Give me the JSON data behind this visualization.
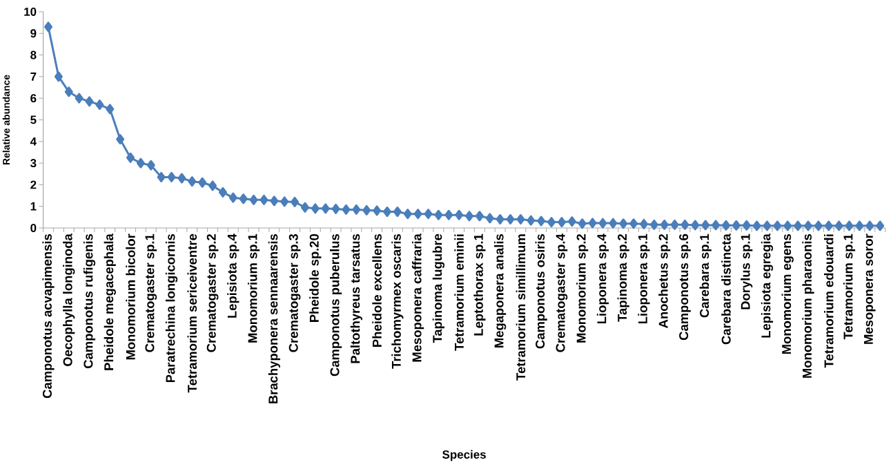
{
  "chart_data": {
    "type": "line",
    "xlabel": "Species",
    "ylabel": "Relative abundance",
    "categories": [
      "Camponotus acvapimensis",
      null,
      "Oecophylla longinoda",
      null,
      "Camponotus rufigenis",
      null,
      "Pheidole megacephala",
      null,
      "Monomorium bicolor",
      null,
      "Crematogaster sp.1",
      null,
      "Paratrechina longicornis",
      null,
      "Tetramorium sericeiventre",
      null,
      "Crematogaster sp.2",
      null,
      "Lepisiota sp.4",
      null,
      "Monomorium sp.1",
      null,
      "Brachyponera sennaarensis",
      null,
      "Crematogaster sp.3",
      null,
      "Pheidole sp.20",
      null,
      "Camponotus puberulus",
      null,
      "Paltothyreus tarsatus",
      null,
      "Pheidole excellens",
      null,
      "Trichomyrmex oscaris",
      null,
      "Mesoponera caffraria",
      null,
      "Tapinoma lugubre",
      null,
      "Tetramorium eminii",
      null,
      "Leptothorax sp.1",
      null,
      "Megaponera analis",
      null,
      "Tetramorium simillimum",
      null,
      "Camponotus osiris",
      null,
      "Crematogaster sp.4",
      null,
      "Monomorium sp.2",
      null,
      "Lioponera sp.4",
      null,
      "Tapinoma sp.2",
      null,
      "Lioponera sp.1",
      null,
      "Anochetus sp.2",
      null,
      "Camponotus sp.6",
      null,
      "Carebara sp.1",
      null,
      "Carebara distincta",
      null,
      "Dorylus sp.1",
      null,
      "Lepisiota egregia",
      null,
      "Monomorium egens",
      null,
      "Monomorium pharaonis",
      null,
      "Tetramorium edouardi",
      null,
      "Tetramorium sp.1",
      null,
      "Mesoponera soror",
      null
    ],
    "values": [
      9.3,
      7.0,
      6.3,
      6.0,
      5.85,
      5.7,
      5.5,
      4.1,
      3.25,
      3.0,
      2.9,
      2.35,
      2.35,
      2.3,
      2.15,
      2.1,
      1.95,
      1.65,
      1.4,
      1.35,
      1.3,
      1.3,
      1.25,
      1.22,
      1.2,
      0.95,
      0.9,
      0.9,
      0.88,
      0.85,
      0.85,
      0.82,
      0.8,
      0.75,
      0.75,
      0.65,
      0.65,
      0.65,
      0.6,
      0.6,
      0.6,
      0.55,
      0.55,
      0.45,
      0.4,
      0.4,
      0.4,
      0.35,
      0.32,
      0.27,
      0.27,
      0.3,
      0.2,
      0.23,
      0.22,
      0.22,
      0.2,
      0.2,
      0.18,
      0.15,
      0.15,
      0.15,
      0.15,
      0.13,
      0.13,
      0.13,
      0.12,
      0.12,
      0.12,
      0.1,
      0.1,
      0.1,
      0.1,
      0.1,
      0.1,
      0.1,
      0.1,
      0.1,
      0.1,
      0.1,
      0.1,
      0.1
    ],
    "color": "#4a7ebb",
    "marker": "diamond",
    "line_style": "solid",
    "ylim": [
      0,
      10
    ],
    "yticks": [
      0,
      1,
      2,
      3,
      4,
      5,
      6,
      7,
      8,
      9,
      10
    ]
  }
}
